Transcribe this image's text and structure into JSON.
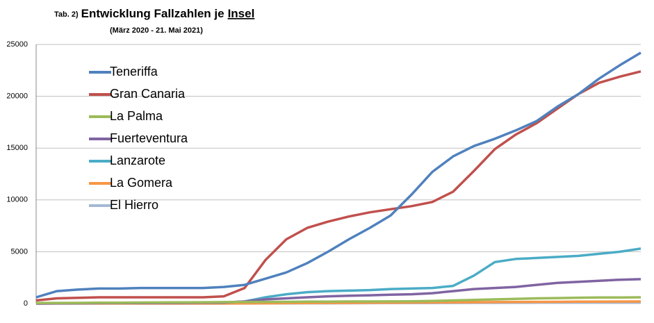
{
  "chart_data": {
    "type": "line",
    "title": [
      "Tab. 2)",
      "Entwicklung Fallzahlen je",
      "Insel"
    ],
    "subtitle": "(März 2020 - 21. Mai 2021)",
    "categories": [
      null,
      null,
      null,
      null,
      null,
      null,
      null,
      null,
      null,
      null,
      null,
      null,
      null,
      null,
      null,
      null,
      null,
      null,
      null,
      null,
      null,
      null,
      null,
      null,
      null,
      null,
      null,
      null,
      null,
      null
    ],
    "series": [
      {
        "name": "Teneriffa",
        "color": "#4f81bd",
        "values": [
          600,
          1200,
          1350,
          1450,
          1450,
          1500,
          1500,
          1500,
          1500,
          1600,
          1800,
          2400,
          3000,
          3900,
          5000,
          6200,
          7300,
          8500,
          10500,
          12700,
          14200,
          15200,
          15900,
          16700,
          17600,
          19000,
          20200,
          21700,
          23000,
          24200
        ]
      },
      {
        "name": "Gran Canaria",
        "color": "#c0504d",
        "values": [
          300,
          500,
          550,
          600,
          600,
          600,
          600,
          600,
          600,
          700,
          1500,
          4200,
          6200,
          7300,
          7900,
          8400,
          8800,
          9100,
          9400,
          9800,
          10800,
          12800,
          14900,
          16300,
          17400,
          18800,
          20200,
          21300,
          21900,
          22400
        ]
      },
      {
        "name": "La Palma",
        "color": "#9bbb59",
        "values": [
          50,
          60,
          70,
          80,
          90,
          100,
          110,
          120,
          130,
          140,
          150,
          160,
          170,
          180,
          190,
          200,
          200,
          210,
          220,
          250,
          300,
          350,
          400,
          450,
          500,
          530,
          560,
          580,
          590,
          600
        ]
      },
      {
        "name": "Fuerteventura",
        "color": "#8064a2",
        "values": [
          0,
          20,
          30,
          40,
          50,
          50,
          60,
          70,
          80,
          100,
          200,
          400,
          500,
          600,
          700,
          750,
          800,
          850,
          900,
          1000,
          1200,
          1400,
          1500,
          1600,
          1800,
          2000,
          2100,
          2200,
          2300,
          2350
        ]
      },
      {
        "name": "Lanzarote",
        "color": "#4bacc6",
        "values": [
          20,
          40,
          50,
          60,
          70,
          80,
          90,
          100,
          100,
          100,
          200,
          600,
          900,
          1100,
          1200,
          1250,
          1300,
          1400,
          1450,
          1500,
          1700,
          2700,
          4000,
          4300,
          4400,
          4500,
          4600,
          4800,
          5000,
          5300
        ]
      },
      {
        "name": "La Gomera",
        "color": "#f79646",
        "values": [
          0,
          10,
          10,
          10,
          10,
          10,
          10,
          10,
          10,
          10,
          20,
          30,
          40,
          50,
          60,
          70,
          80,
          90,
          100,
          110,
          120,
          130,
          140,
          150,
          160,
          170,
          180,
          190,
          195,
          200
        ]
      },
      {
        "name": "El Hierro",
        "color": "#a5b9d4",
        "values": [
          0,
          5,
          5,
          5,
          5,
          5,
          5,
          5,
          5,
          5,
          10,
          15,
          20,
          25,
          30,
          35,
          40,
          45,
          50,
          55,
          60,
          65,
          70,
          75,
          80,
          85,
          90,
          95,
          100,
          100
        ]
      }
    ],
    "ylim": [
      0,
      25000
    ],
    "yticks": [
      0,
      5000,
      10000,
      15000,
      20000,
      25000
    ],
    "grid": true,
    "legend": "upper left"
  }
}
